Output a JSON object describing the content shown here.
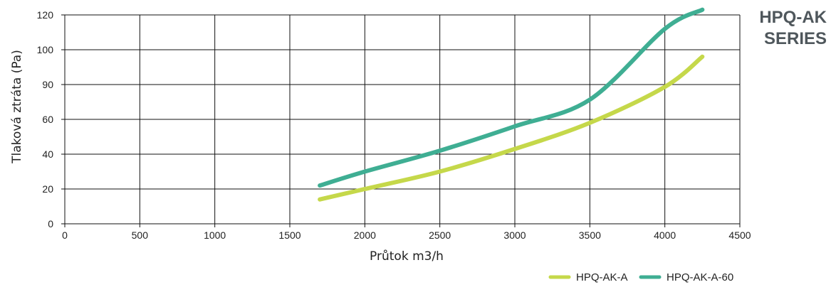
{
  "badge": {
    "line1": "HPQ-AK",
    "line2": "SERIES"
  },
  "chart_data": {
    "type": "line",
    "title": "",
    "xlabel": "Průtok m3/h",
    "ylabel": "Tlaková ztráta (Pa)",
    "x_ticks": [
      0,
      500,
      1000,
      1500,
      2000,
      2500,
      3000,
      3500,
      4000,
      4500
    ],
    "y_ticks": [
      0,
      20,
      40,
      60,
      90,
      100,
      120
    ],
    "x_tick_labels": [
      "0",
      "500",
      "1000",
      "1500",
      "2000",
      "2500",
      "3000",
      "3500",
      "4000",
      "4500"
    ],
    "y_tick_labels": [
      "0",
      "20",
      "40",
      "60",
      "90",
      "100",
      "120"
    ],
    "xlim": [
      0,
      4500
    ],
    "y_scale_note_values": [
      0,
      20,
      40,
      60,
      90,
      100,
      120
    ],
    "grid": true,
    "legend_position": "bottom-right",
    "series": [
      {
        "name": "HPQ-AK-A",
        "color": "#c5d84a",
        "x": [
          1700,
          2000,
          2500,
          3000,
          3500,
          4000,
          4250
        ],
        "y": [
          14,
          20,
          30,
          43,
          58,
          88,
          98
        ]
      },
      {
        "name": "HPQ-AK-A-60",
        "color": "#3fae93",
        "x": [
          1700,
          2000,
          2500,
          3000,
          3500,
          4000,
          4250
        ],
        "y": [
          22,
          30,
          42,
          56,
          77,
          112,
          123
        ]
      }
    ]
  }
}
